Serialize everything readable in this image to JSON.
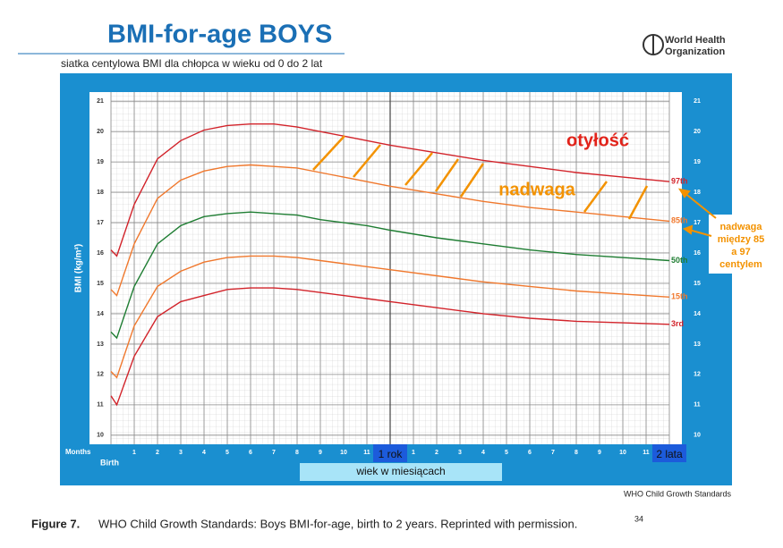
{
  "header": {
    "title": "BMI-for-age BOYS",
    "subtitle": "siatka centylowa BMI dla chłopca w wieku od 0 do 2 lat",
    "organization": [
      "World Health",
      "Organization"
    ]
  },
  "footer": {
    "source": "WHO Child Growth Standards",
    "caption_label": "Figure 7.",
    "caption": "WHO Child Growth Standards: Boys BMI-for-age, birth to 2 years. Reprinted with permission.",
    "caption_ref": "34"
  },
  "chart_data": {
    "type": "line",
    "ylabel": "BMI (kg/m²)",
    "xlabel": "wiek w miesiącach",
    "months_label": "Months",
    "xlim": [
      0,
      24
    ],
    "ylim": [
      9.7,
      21.3
    ],
    "yticks": [
      10,
      11,
      12,
      13,
      14,
      15,
      16,
      17,
      18,
      19,
      20,
      21
    ],
    "xticks": [
      {
        "value": 0,
        "label": "Birth"
      },
      1,
      2,
      3,
      4,
      5,
      6,
      7,
      8,
      9,
      10,
      11,
      {
        "value": 12,
        "label": "1 rok"
      },
      {
        "value": 13,
        "label": "1"
      },
      {
        "value": 14,
        "label": "2"
      },
      {
        "value": 15,
        "label": "3"
      },
      {
        "value": 16,
        "label": "4"
      },
      {
        "value": 17,
        "label": "5"
      },
      {
        "value": 18,
        "label": "6"
      },
      {
        "value": 19,
        "label": "7"
      },
      {
        "value": 20,
        "label": "8"
      },
      {
        "value": 21,
        "label": "9"
      },
      {
        "value": 22,
        "label": "10"
      },
      {
        "value": 23,
        "label": "11"
      },
      {
        "value": 24,
        "label": "2 lata"
      }
    ],
    "grid": true,
    "x": [
      0,
      0.25,
      1,
      2,
      3,
      4,
      5,
      6,
      7,
      8,
      9,
      10,
      11,
      12,
      14,
      16,
      18,
      20,
      22,
      24
    ],
    "series": [
      {
        "name": "97th",
        "color": "#d2232a",
        "values": [
          16.1,
          15.9,
          17.6,
          19.1,
          19.7,
          20.05,
          20.2,
          20.25,
          20.25,
          20.15,
          20.0,
          19.85,
          19.7,
          19.55,
          19.3,
          19.05,
          18.85,
          18.65,
          18.5,
          18.35
        ]
      },
      {
        "name": "85th",
        "color": "#f0782d",
        "values": [
          14.8,
          14.6,
          16.3,
          17.8,
          18.4,
          18.7,
          18.85,
          18.9,
          18.85,
          18.8,
          18.65,
          18.5,
          18.35,
          18.2,
          17.95,
          17.7,
          17.5,
          17.35,
          17.2,
          17.05
        ]
      },
      {
        "name": "50th",
        "color": "#1e7d32",
        "values": [
          13.4,
          13.2,
          14.9,
          16.3,
          16.9,
          17.2,
          17.3,
          17.35,
          17.3,
          17.25,
          17.1,
          17.0,
          16.9,
          16.75,
          16.5,
          16.3,
          16.1,
          15.95,
          15.85,
          15.75
        ]
      },
      {
        "name": "15th",
        "color": "#f0782d",
        "values": [
          12.1,
          11.9,
          13.6,
          14.9,
          15.4,
          15.7,
          15.85,
          15.9,
          15.9,
          15.85,
          15.75,
          15.65,
          15.55,
          15.45,
          15.25,
          15.05,
          14.9,
          14.75,
          14.65,
          14.55
        ]
      },
      {
        "name": "3rd",
        "color": "#d2232a",
        "values": [
          11.3,
          11.0,
          12.6,
          13.9,
          14.4,
          14.6,
          14.8,
          14.85,
          14.85,
          14.8,
          14.7,
          14.6,
          14.5,
          14.4,
          14.2,
          14.0,
          13.85,
          13.75,
          13.7,
          13.65
        ]
      }
    ],
    "annotations": {
      "obesity": "otyłość",
      "overweight": "nadwaga",
      "note": [
        "nadwaga",
        "między 85",
        "a 97",
        "centylem"
      ]
    }
  }
}
